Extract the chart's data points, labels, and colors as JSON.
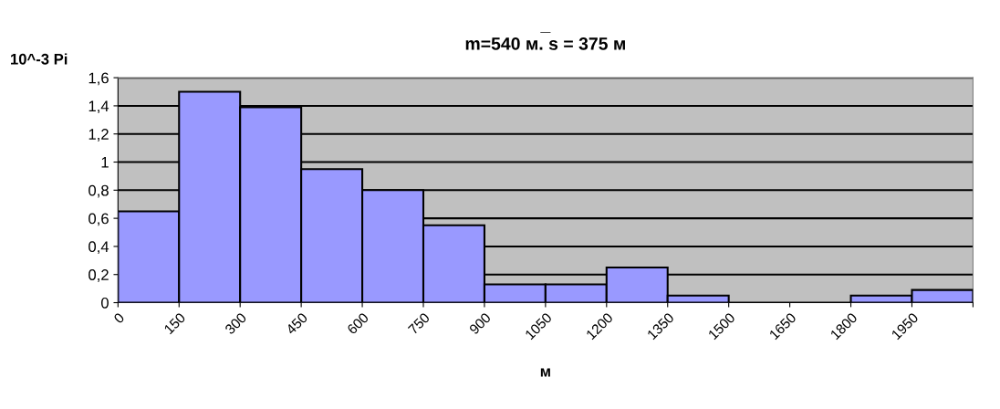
{
  "chart_data": {
    "type": "histogram",
    "title": "_\nm=540 м. s = 375 м",
    "ylabel": "10^-3 Pi",
    "xlabel": "м",
    "bins": [
      0,
      150,
      300,
      450,
      600,
      750,
      900,
      1050,
      1200,
      1350,
      1500,
      1650,
      1800,
      1950,
      2100
    ],
    "values": [
      0.65,
      1.5,
      1.39,
      0.95,
      0.8,
      0.55,
      0.13,
      0.13,
      0.25,
      0.05,
      0,
      0,
      0.05,
      0.09
    ],
    "color": "#9999ff",
    "xlim": [
      0,
      2100
    ],
    "xticks": [
      0,
      150,
      300,
      450,
      600,
      750,
      900,
      1050,
      1200,
      1350,
      1500,
      1650,
      1800,
      1950,
      {
        "value": 2100,
        "label": null
      }
    ],
    "ylim": [
      0,
      1.6
    ],
    "yticks": [
      {
        "value": 0,
        "label": "0"
      },
      {
        "value": 0.2,
        "label": "0,2"
      },
      {
        "value": 0.4,
        "label": "0,4"
      },
      {
        "value": 0.6,
        "label": "0,6"
      },
      {
        "value": 0.8,
        "label": "0,8"
      },
      {
        "value": 1,
        "label": "1"
      },
      {
        "value": 1.2,
        "label": "1,2"
      },
      {
        "value": 1.4,
        "label": "1,4"
      },
      {
        "value": 1.6,
        "label": "1,6"
      }
    ],
    "grid": "y"
  }
}
